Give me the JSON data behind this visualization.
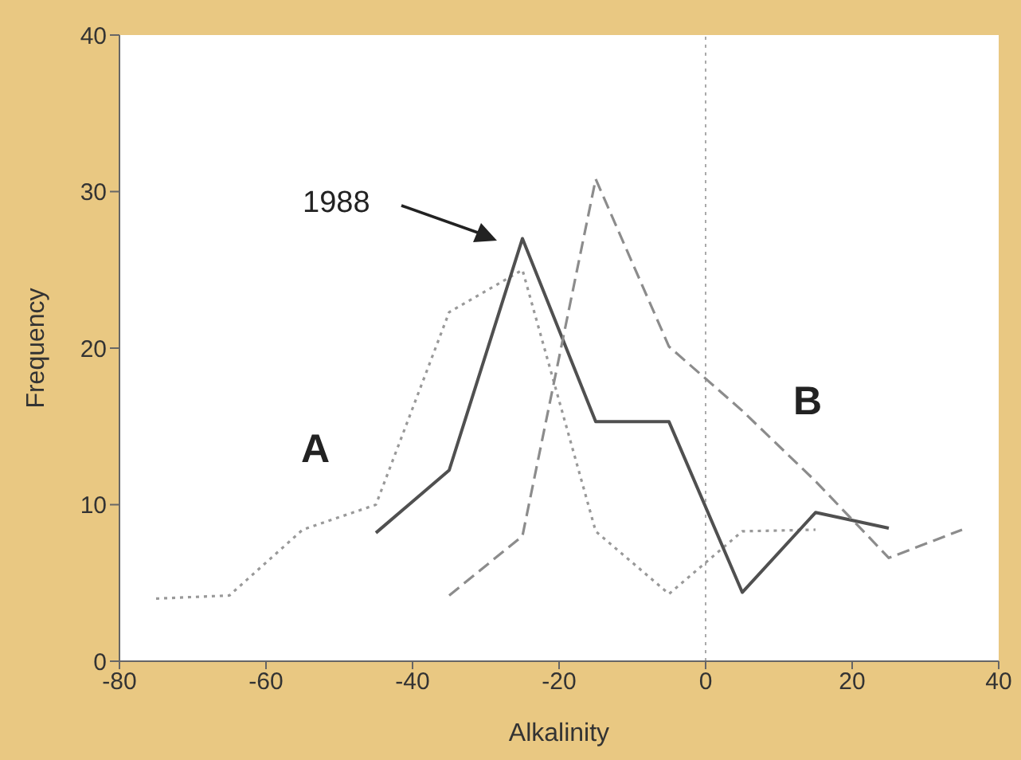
{
  "chart_data": {
    "type": "line",
    "xlabel": "Alkalinity",
    "ylabel": "Frequency",
    "xlim": [
      -80,
      40
    ],
    "xticks": [
      -80,
      -60,
      -40,
      -20,
      0,
      20,
      40
    ],
    "ylim": [
      0,
      40
    ],
    "yticks": [
      0,
      10,
      20,
      30,
      40
    ],
    "grid": false,
    "marker": "none",
    "series": [
      {
        "color": "#999999",
        "line_style": "dotted",
        "x": [
          -75,
          -65,
          -55,
          -45,
          -35,
          -25,
          -15,
          -5,
          5,
          15
        ],
        "values": [
          4.0,
          4.2,
          8.4,
          10.0,
          22.3,
          25.0,
          8.3,
          4.3,
          8.3,
          8.4
        ]
      },
      {
        "color": "#505050",
        "line_style": "solid",
        "x": [
          -45,
          -35,
          -25,
          -15,
          -5,
          5,
          15,
          25
        ],
        "values": [
          8.2,
          12.2,
          27.0,
          15.3,
          15.3,
          4.4,
          9.5,
          8.5
        ]
      },
      {
        "color": "#8c8c8c",
        "line_style": "dashed",
        "x": [
          -35,
          -25,
          -15,
          -5,
          5,
          15,
          25,
          35
        ],
        "values": [
          4.2,
          8.0,
          30.8,
          20.1,
          16.0,
          11.5,
          6.6,
          8.4
        ]
      }
    ],
    "ref_lines": [
      {
        "axis": "x",
        "value": 0,
        "color": "#aaaaaa",
        "line_style": "dotted"
      }
    ],
    "annotations": [
      "1988",
      "A",
      "B"
    ]
  }
}
